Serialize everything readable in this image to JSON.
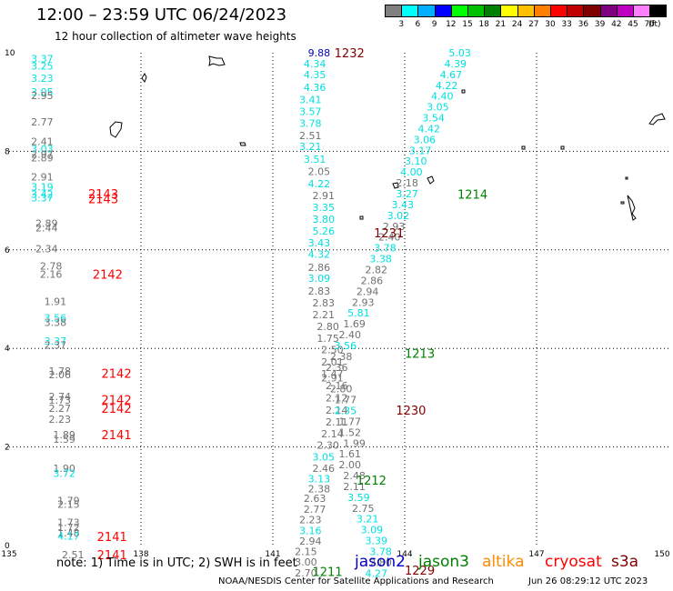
{
  "header": {
    "title": "12:00 – 23:59 UTC 06/24/2023",
    "subtitle": "12 hour collection of altimeter wave heights"
  },
  "colorbar": {
    "colors": [
      "#808080",
      "#00ffff",
      "#00b0ff",
      "#0000ff",
      "#00ff00",
      "#00c000",
      "#008000",
      "#ffff00",
      "#ffc000",
      "#ff8000",
      "#ff0000",
      "#c00000",
      "#800000",
      "#800080",
      "#c000c0",
      "#ff80ff",
      "#000000"
    ],
    "ticks": [
      "3",
      "6",
      "9",
      "12",
      "15",
      "18",
      "21",
      "24",
      "27",
      "30",
      "33",
      "36",
      "39",
      "42",
      "45",
      "70"
    ],
    "unit": "(ft)"
  },
  "axes": {
    "x_ticks": [
      "135",
      "138",
      "141",
      "144",
      "147",
      "150"
    ],
    "y_ticks": [
      "0",
      "2",
      "4",
      "6",
      "8",
      "10"
    ]
  },
  "palette": {
    "gray": "#707070",
    "cyan": "#00e0e0",
    "red": "#ff0000",
    "darkred": "#800000",
    "green": "#008000",
    "blue": "#0000c0"
  },
  "swh_labels": [
    {
      "t": "3.37",
      "lon": 135.5,
      "lat": 9.88,
      "c": "cyan"
    },
    {
      "t": "3.25",
      "lon": 135.5,
      "lat": 9.73,
      "c": "cyan"
    },
    {
      "t": "3.23",
      "lon": 135.5,
      "lat": 9.48,
      "c": "cyan"
    },
    {
      "t": "3.05",
      "lon": 135.5,
      "lat": 9.21,
      "c": "cyan"
    },
    {
      "t": "2.95",
      "lon": 135.5,
      "lat": 9.13,
      "c": "gray"
    },
    {
      "t": "2.77",
      "lon": 135.5,
      "lat": 8.6,
      "c": "gray"
    },
    {
      "t": "2.41",
      "lon": 135.5,
      "lat": 8.2,
      "c": "gray"
    },
    {
      "t": "3.03",
      "lon": 135.5,
      "lat": 8.05,
      "c": "cyan"
    },
    {
      "t": "2.97",
      "lon": 135.5,
      "lat": 7.94,
      "c": "gray"
    },
    {
      "t": "2.89",
      "lon": 135.5,
      "lat": 7.87,
      "c": "gray"
    },
    {
      "t": "2.91",
      "lon": 135.5,
      "lat": 7.48,
      "c": "gray"
    },
    {
      "t": "3.19",
      "lon": 135.5,
      "lat": 7.28,
      "c": "cyan"
    },
    {
      "t": "3.42",
      "lon": 135.5,
      "lat": 7.13,
      "c": "cyan"
    },
    {
      "t": "3.37",
      "lon": 135.5,
      "lat": 7.06,
      "c": "cyan"
    },
    {
      "t": "2.89",
      "lon": 135.6,
      "lat": 6.54,
      "c": "gray"
    },
    {
      "t": "2.44",
      "lon": 135.6,
      "lat": 6.45,
      "c": "gray"
    },
    {
      "t": "2.34",
      "lon": 135.6,
      "lat": 6.02,
      "c": "gray"
    },
    {
      "t": "2.78",
      "lon": 135.7,
      "lat": 5.67,
      "c": "gray"
    },
    {
      "t": "2.16",
      "lon": 135.7,
      "lat": 5.51,
      "c": "gray"
    },
    {
      "t": "1.91",
      "lon": 135.8,
      "lat": 4.95,
      "c": "gray"
    },
    {
      "t": "3.56",
      "lon": 135.8,
      "lat": 4.62,
      "c": "cyan"
    },
    {
      "t": "3.38",
      "lon": 135.8,
      "lat": 4.53,
      "c": "gray"
    },
    {
      "t": "3.37",
      "lon": 135.8,
      "lat": 4.15,
      "c": "cyan"
    },
    {
      "t": "2.37",
      "lon": 135.8,
      "lat": 4.07,
      "c": "gray"
    },
    {
      "t": "1.78",
      "lon": 135.9,
      "lat": 3.54,
      "c": "gray"
    },
    {
      "t": "2.06",
      "lon": 135.9,
      "lat": 3.47,
      "c": "gray"
    },
    {
      "t": "2.74",
      "lon": 135.9,
      "lat": 3.03,
      "c": "gray"
    },
    {
      "t": "1.73",
      "lon": 135.9,
      "lat": 2.95,
      "c": "gray"
    },
    {
      "t": "2.27",
      "lon": 135.9,
      "lat": 2.79,
      "c": "gray"
    },
    {
      "t": "2.23",
      "lon": 135.9,
      "lat": 2.56,
      "c": "gray"
    },
    {
      "t": "1.89",
      "lon": 136.0,
      "lat": 2.25,
      "c": "gray"
    },
    {
      "t": "1.59",
      "lon": 136.0,
      "lat": 2.16,
      "c": "gray"
    },
    {
      "t": "1.90",
      "lon": 136.0,
      "lat": 1.57,
      "c": "gray"
    },
    {
      "t": "3.72",
      "lon": 136.0,
      "lat": 1.47,
      "c": "cyan"
    },
    {
      "t": "1.79",
      "lon": 136.1,
      "lat": 0.91,
      "c": "gray"
    },
    {
      "t": "2.15",
      "lon": 136.1,
      "lat": 0.84,
      "c": "gray"
    },
    {
      "t": "1.73",
      "lon": 136.1,
      "lat": 0.47,
      "c": "gray"
    },
    {
      "t": "1.72",
      "lon": 136.1,
      "lat": 0.37,
      "c": "gray"
    },
    {
      "t": "1.48",
      "lon": 136.1,
      "lat": 0.26,
      "c": "gray"
    },
    {
      "t": "4.17",
      "lon": 136.1,
      "lat": 0.19,
      "c": "cyan"
    },
    {
      "t": "2.51",
      "lon": 136.2,
      "lat": -0.18,
      "c": "gray"
    },
    {
      "t": "9.88",
      "lon": 141.8,
      "lat": 10.0,
      "c": "blue"
    },
    {
      "t": "4.34",
      "lon": 141.7,
      "lat": 9.78,
      "c": "cyan"
    },
    {
      "t": "4.35",
      "lon": 141.7,
      "lat": 9.56,
      "c": "cyan"
    },
    {
      "t": "4.36",
      "lon": 141.7,
      "lat": 9.3,
      "c": "cyan"
    },
    {
      "t": "3.41",
      "lon": 141.6,
      "lat": 9.05,
      "c": "cyan"
    },
    {
      "t": "3.57",
      "lon": 141.6,
      "lat": 8.81,
      "c": "cyan"
    },
    {
      "t": "3.78",
      "lon": 141.6,
      "lat": 8.57,
      "c": "cyan"
    },
    {
      "t": "2.51",
      "lon": 141.6,
      "lat": 8.32,
      "c": "gray"
    },
    {
      "t": "3.21",
      "lon": 141.6,
      "lat": 8.1,
      "c": "cyan"
    },
    {
      "t": "3.51",
      "lon": 141.7,
      "lat": 7.84,
      "c": "cyan"
    },
    {
      "t": "2.05",
      "lon": 141.8,
      "lat": 7.59,
      "c": "gray"
    },
    {
      "t": "4.22",
      "lon": 141.8,
      "lat": 7.34,
      "c": "cyan"
    },
    {
      "t": "2.91",
      "lon": 141.9,
      "lat": 7.1,
      "c": "gray"
    },
    {
      "t": "3.35",
      "lon": 141.9,
      "lat": 6.86,
      "c": "cyan"
    },
    {
      "t": "3.80",
      "lon": 141.9,
      "lat": 6.62,
      "c": "cyan"
    },
    {
      "t": "5.26",
      "lon": 141.9,
      "lat": 6.38,
      "c": "cyan"
    },
    {
      "t": "3.43",
      "lon": 141.8,
      "lat": 6.14,
      "c": "cyan"
    },
    {
      "t": "4.32",
      "lon": 141.8,
      "lat": 5.91,
      "c": "cyan"
    },
    {
      "t": "2.86",
      "lon": 141.8,
      "lat": 5.65,
      "c": "gray"
    },
    {
      "t": "3.09",
      "lon": 141.8,
      "lat": 5.42,
      "c": "cyan"
    },
    {
      "t": "2.83",
      "lon": 141.8,
      "lat": 5.17,
      "c": "gray"
    },
    {
      "t": "2.83",
      "lon": 141.9,
      "lat": 4.93,
      "c": "gray"
    },
    {
      "t": "2.21",
      "lon": 141.9,
      "lat": 4.69,
      "c": "gray"
    },
    {
      "t": "2.80",
      "lon": 142.0,
      "lat": 4.45,
      "c": "gray"
    },
    {
      "t": "1.75",
      "lon": 142.0,
      "lat": 4.21,
      "c": "gray"
    },
    {
      "t": "2.50",
      "lon": 142.1,
      "lat": 3.98,
      "c": "gray"
    },
    {
      "t": "2.01",
      "lon": 142.1,
      "lat": 3.73,
      "c": "gray"
    },
    {
      "t": "1.47",
      "lon": 142.1,
      "lat": 3.49,
      "c": "gray"
    },
    {
      "t": "2.16",
      "lon": 142.2,
      "lat": 3.25,
      "c": "gray"
    },
    {
      "t": "2.12",
      "lon": 142.2,
      "lat": 3.0,
      "c": "gray"
    },
    {
      "t": "2.14",
      "lon": 142.2,
      "lat": 2.75,
      "c": "gray"
    },
    {
      "t": "2.11",
      "lon": 142.2,
      "lat": 2.51,
      "c": "gray"
    },
    {
      "t": "2.14",
      "lon": 142.1,
      "lat": 2.27,
      "c": "gray"
    },
    {
      "t": "2.30",
      "lon": 142.0,
      "lat": 2.04,
      "c": "gray"
    },
    {
      "t": "3.05",
      "lon": 141.9,
      "lat": 1.8,
      "c": "cyan"
    },
    {
      "t": "2.46",
      "lon": 141.9,
      "lat": 1.57,
      "c": "gray"
    },
    {
      "t": "3.13",
      "lon": 141.8,
      "lat": 1.36,
      "c": "cyan"
    },
    {
      "t": "2.38",
      "lon": 141.8,
      "lat": 1.15,
      "c": "gray"
    },
    {
      "t": "2.63",
      "lon": 141.7,
      "lat": 0.96,
      "c": "gray"
    },
    {
      "t": "2.77",
      "lon": 141.7,
      "lat": 0.74,
      "c": "gray"
    },
    {
      "t": "2.23",
      "lon": 141.6,
      "lat": 0.53,
      "c": "gray"
    },
    {
      "t": "3.16",
      "lon": 141.6,
      "lat": 0.3,
      "c": "cyan"
    },
    {
      "t": "2.94",
      "lon": 141.6,
      "lat": 0.09,
      "c": "gray"
    },
    {
      "t": "2.15",
      "lon": 141.5,
      "lat": -0.12,
      "c": "gray"
    },
    {
      "t": "3.00",
      "lon": 141.5,
      "lat": -0.33,
      "c": "gray"
    },
    {
      "t": "2.70",
      "lon": 141.5,
      "lat": -0.55,
      "c": "gray"
    },
    {
      "t": "5.03",
      "lon": 145.0,
      "lat": 10.0,
      "c": "cyan"
    },
    {
      "t": "4.39",
      "lon": 144.9,
      "lat": 9.78,
      "c": "cyan"
    },
    {
      "t": "4.67",
      "lon": 144.8,
      "lat": 9.56,
      "c": "cyan"
    },
    {
      "t": "4.22",
      "lon": 144.7,
      "lat": 9.34,
      "c": "cyan"
    },
    {
      "t": "4.40",
      "lon": 144.6,
      "lat": 9.12,
      "c": "cyan"
    },
    {
      "t": "3.05",
      "lon": 144.5,
      "lat": 8.9,
      "c": "cyan"
    },
    {
      "t": "3.54",
      "lon": 144.4,
      "lat": 8.68,
      "c": "cyan"
    },
    {
      "t": "4.42",
      "lon": 144.3,
      "lat": 8.46,
      "c": "cyan"
    },
    {
      "t": "3.06",
      "lon": 144.2,
      "lat": 8.24,
      "c": "cyan"
    },
    {
      "t": "3.17",
      "lon": 144.1,
      "lat": 8.02,
      "c": "cyan"
    },
    {
      "t": "3.10",
      "lon": 144.0,
      "lat": 7.8,
      "c": "cyan"
    },
    {
      "t": "4.00",
      "lon": 143.9,
      "lat": 7.58,
      "c": "cyan"
    },
    {
      "t": "2.18",
      "lon": 143.8,
      "lat": 7.36,
      "c": "gray"
    },
    {
      "t": "3.27",
      "lon": 143.8,
      "lat": 7.14,
      "c": "cyan"
    },
    {
      "t": "3.43",
      "lon": 143.7,
      "lat": 6.92,
      "c": "cyan"
    },
    {
      "t": "3.02",
      "lon": 143.6,
      "lat": 6.7,
      "c": "cyan"
    },
    {
      "t": "2.93",
      "lon": 143.5,
      "lat": 6.48,
      "c": "gray"
    },
    {
      "t": "2.40",
      "lon": 143.4,
      "lat": 6.26,
      "c": "gray"
    },
    {
      "t": "3.78",
      "lon": 143.3,
      "lat": 6.04,
      "c": "cyan"
    },
    {
      "t": "3.38",
      "lon": 143.2,
      "lat": 5.82,
      "c": "cyan"
    },
    {
      "t": "2.82",
      "lon": 143.1,
      "lat": 5.6,
      "c": "gray"
    },
    {
      "t": "2.86",
      "lon": 143.0,
      "lat": 5.38,
      "c": "gray"
    },
    {
      "t": "2.94",
      "lon": 142.9,
      "lat": 5.16,
      "c": "gray"
    },
    {
      "t": "2.93",
      "lon": 142.8,
      "lat": 4.94,
      "c": "gray"
    },
    {
      "t": "5.81",
      "lon": 142.7,
      "lat": 4.72,
      "c": "cyan"
    },
    {
      "t": "1.69",
      "lon": 142.6,
      "lat": 4.5,
      "c": "gray"
    },
    {
      "t": "2.40",
      "lon": 142.5,
      "lat": 4.28,
      "c": "gray"
    },
    {
      "t": "3.56",
      "lon": 142.4,
      "lat": 4.06,
      "c": "cyan"
    },
    {
      "t": "2.38",
      "lon": 142.3,
      "lat": 3.84,
      "c": "gray"
    },
    {
      "t": "2.36",
      "lon": 142.2,
      "lat": 3.62,
      "c": "gray"
    },
    {
      "t": "2.91",
      "lon": 142.1,
      "lat": 3.4,
      "c": "gray"
    },
    {
      "t": "2.80",
      "lon": 142.3,
      "lat": 3.18,
      "c": "gray"
    },
    {
      "t": "1.77",
      "lon": 142.4,
      "lat": 2.96,
      "c": "gray"
    },
    {
      "t": "2.35",
      "lon": 142.4,
      "lat": 2.74,
      "c": "cyan"
    },
    {
      "t": "1.77",
      "lon": 142.5,
      "lat": 2.52,
      "c": "gray"
    },
    {
      "t": "1.52",
      "lon": 142.5,
      "lat": 2.3,
      "c": "gray"
    },
    {
      "t": "1.99",
      "lon": 142.6,
      "lat": 2.08,
      "c": "gray"
    },
    {
      "t": "1.61",
      "lon": 142.5,
      "lat": 1.86,
      "c": "gray"
    },
    {
      "t": "2.00",
      "lon": 142.5,
      "lat": 1.64,
      "c": "gray"
    },
    {
      "t": "2.48",
      "lon": 142.6,
      "lat": 1.42,
      "c": "gray"
    },
    {
      "t": "2.11",
      "lon": 142.6,
      "lat": 1.2,
      "c": "gray"
    },
    {
      "t": "3.59",
      "lon": 142.7,
      "lat": 0.98,
      "c": "cyan"
    },
    {
      "t": "2.75",
      "lon": 142.8,
      "lat": 0.76,
      "c": "gray"
    },
    {
      "t": "3.21",
      "lon": 142.9,
      "lat": 0.54,
      "c": "cyan"
    },
    {
      "t": "3.09",
      "lon": 143.0,
      "lat": 0.32,
      "c": "cyan"
    },
    {
      "t": "3.39",
      "lon": 143.1,
      "lat": 0.1,
      "c": "cyan"
    },
    {
      "t": "3.78",
      "lon": 143.2,
      "lat": -0.12,
      "c": "cyan"
    },
    {
      "t": "2.80",
      "lon": 143.2,
      "lat": -0.34,
      "c": "gray"
    },
    {
      "t": "4.27",
      "lon": 143.1,
      "lat": -0.56,
      "c": "cyan"
    }
  ],
  "pass_labels": [
    {
      "t": "1232",
      "lon": 142.4,
      "lat": 10.0,
      "c": "darkred"
    },
    {
      "t": "1231",
      "lon": 143.3,
      "lat": 6.35,
      "c": "darkred"
    },
    {
      "t": "1230",
      "lon": 143.8,
      "lat": 2.75,
      "c": "darkred"
    },
    {
      "t": "1229",
      "lon": 144.0,
      "lat": -0.5,
      "c": "darkred"
    },
    {
      "t": "1214",
      "lon": 145.2,
      "lat": 7.13,
      "c": "green"
    },
    {
      "t": "1213",
      "lon": 144.0,
      "lat": 3.9,
      "c": "green"
    },
    {
      "t": "1212",
      "lon": 142.9,
      "lat": 1.33,
      "c": "green"
    },
    {
      "t": "1211",
      "lon": 141.9,
      "lat": -0.53,
      "c": "green"
    },
    {
      "t": "2143",
      "lon": 136.8,
      "lat": 7.14,
      "c": "red"
    },
    {
      "t": "2143",
      "lon": 136.8,
      "lat": 7.04,
      "c": "red"
    },
    {
      "t": "2142",
      "lon": 136.9,
      "lat": 5.51,
      "c": "red"
    },
    {
      "t": "2142",
      "lon": 137.1,
      "lat": 3.5,
      "c": "red"
    },
    {
      "t": "2142",
      "lon": 137.1,
      "lat": 2.96,
      "c": "red"
    },
    {
      "t": "2142",
      "lon": 137.1,
      "lat": 2.79,
      "c": "red"
    },
    {
      "t": "2141",
      "lon": 137.1,
      "lat": 2.25,
      "c": "red"
    },
    {
      "t": "2141",
      "lon": 137.0,
      "lat": 0.18,
      "c": "red"
    },
    {
      "t": "2141",
      "lon": 137.0,
      "lat": -0.18,
      "c": "red"
    }
  ],
  "legend": {
    "note": "note:  1) Time is in UTC; 2) SWH is in feet",
    "satellites": [
      {
        "name": "jason2",
        "color": "#0000c0"
      },
      {
        "name": "jason3",
        "color": "#008000"
      },
      {
        "name": "altika",
        "color": "#ff8c00"
      },
      {
        "name": "cryosat",
        "color": "#ff0000"
      },
      {
        "name": "s3a",
        "color": "#800000"
      }
    ]
  },
  "footer": {
    "credit": "NOAA/NESDIS Center for Satellite Applications and Research",
    "timestamp": "Jun 26 08:29:12 UTC 2023"
  }
}
